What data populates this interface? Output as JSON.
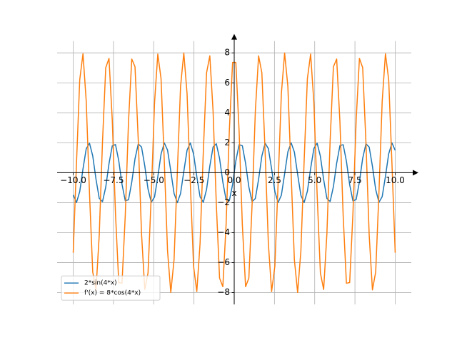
{
  "chart_data": {
    "type": "line",
    "xlabel": "x",
    "grid": true,
    "legend": "lower left",
    "xlim": [
      -11,
      11
    ],
    "ylim": [
      -8.79,
      8.79
    ],
    "xticks": [
      {
        "value": -10,
        "label": "−10.0"
      },
      {
        "value": -7.5,
        "label": "−7.5"
      },
      {
        "value": -5,
        "label": "−5.0"
      },
      {
        "value": -2.5,
        "label": "−2.5"
      },
      {
        "value": 0,
        "label": "0.0"
      },
      2.5,
      {
        "value": 5,
        "label": "5.0"
      },
      7.5,
      {
        "value": 10,
        "label": "10.0"
      }
    ],
    "yticks": [
      {
        "value": -8,
        "label": "−8"
      },
      {
        "value": -6,
        "label": "−6"
      },
      {
        "value": -4,
        "label": "−4"
      },
      {
        "value": -2,
        "label": "−2"
      },
      0,
      2,
      4,
      6,
      8
    ],
    "x": [
      -10,
      -9.798,
      -9.596,
      -9.394,
      -9.192,
      -8.99,
      -8.788,
      -8.586,
      -8.384,
      -8.182,
      -7.98,
      -7.778,
      -7.576,
      -7.374,
      -7.172,
      -6.97,
      -6.768,
      -6.566,
      -6.364,
      -6.162,
      -5.96,
      -5.758,
      -5.556,
      -5.354,
      -5.152,
      -4.949,
      -4.747,
      -4.545,
      -4.343,
      -4.141,
      -3.939,
      -3.737,
      -3.535,
      -3.333,
      -3.131,
      -2.929,
      -2.727,
      -2.525,
      -2.323,
      -2.121,
      -1.919,
      -1.717,
      -1.515,
      -1.313,
      -1.111,
      -0.909,
      -0.707,
      -0.505,
      -0.303,
      -0.101,
      0.101,
      0.303,
      0.505,
      0.707,
      0.909,
      1.111,
      1.313,
      1.515,
      1.717,
      1.919,
      2.121,
      2.323,
      2.525,
      2.727,
      2.929,
      3.131,
      3.333,
      3.535,
      3.737,
      3.939,
      4.141,
      4.343,
      4.545,
      4.747,
      4.949,
      5.152,
      5.354,
      5.556,
      5.758,
      5.96,
      6.162,
      6.364,
      6.566,
      6.768,
      6.97,
      7.172,
      7.374,
      7.576,
      7.778,
      7.98,
      8.182,
      8.384,
      8.586,
      8.788,
      8.99,
      9.192,
      9.394,
      9.596,
      9.798,
      10
    ],
    "series": [
      {
        "name": "2*sin(4*x)",
        "color": "#1f77b4",
        "values": [
          -1.49,
          -1.99,
          -1.26,
          0.25,
          1.6,
          1.97,
          1.12,
          -0.43,
          -1.71,
          -1.93,
          -0.96,
          0.6,
          1.79,
          1.88,
          0.8,
          -0.77,
          -1.87,
          -1.81,
          -0.63,
          0.93,
          1.92,
          1.72,
          0.46,
          -1.09,
          -1.97,
          -1.62,
          -0.28,
          1.24,
          1.99,
          1.51,
          0.1,
          -1.38,
          -2.0,
          -1.39,
          0.08,
          1.5,
          1.99,
          1.25,
          -0.26,
          -1.61,
          -1.97,
          -1.11,
          0.44,
          1.72,
          1.93,
          0.95,
          -0.62,
          -1.8,
          -1.87,
          -0.79,
          0.79,
          1.87,
          1.8,
          0.62,
          -0.95,
          -1.93,
          -1.72,
          -0.44,
          1.11,
          1.97,
          1.61,
          0.26,
          -1.25,
          -1.99,
          -1.5,
          -0.08,
          1.39,
          2.0,
          1.38,
          -0.1,
          -1.51,
          -1.99,
          -1.24,
          0.28,
          1.62,
          1.97,
          1.09,
          -0.46,
          -1.72,
          -1.92,
          -0.93,
          0.63,
          1.81,
          1.87,
          0.77,
          -0.8,
          -1.88,
          -1.79,
          -0.6,
          0.96,
          1.93,
          1.71,
          0.43,
          -1.12,
          -1.97,
          -1.6,
          -0.25,
          1.26,
          1.99,
          1.49
        ]
      },
      {
        "name": "f'(x) = 8*cos(4*x)",
        "color": "#ff7f0e",
        "values": [
          -5.34,
          0.62,
          6.2,
          7.94,
          4.77,
          -1.34,
          -6.63,
          -7.82,
          -4.17,
          2.05,
          7.01,
          7.63,
          3.54,
          -2.74,
          -7.33,
          -7.38,
          -2.87,
          3.41,
          7.59,
          7.07,
          2.18,
          -4.06,
          -7.79,
          -6.7,
          -1.48,
          4.66,
          7.92,
          6.28,
          0.76,
          -5.23,
          -7.99,
          -5.81,
          -0.03,
          5.76,
          7.99,
          5.28,
          -0.69,
          -6.24,
          -7.93,
          -4.72,
          1.41,
          6.67,
          7.8,
          4.12,
          -2.12,
          -7.04,
          -7.61,
          -3.48,
          2.81,
          7.36,
          7.36,
          2.81,
          -3.48,
          -7.61,
          -7.04,
          -2.12,
          4.12,
          7.8,
          6.67,
          1.41,
          -4.72,
          -7.93,
          -6.24,
          -0.69,
          5.28,
          7.99,
          5.76,
          -0.03,
          -5.81,
          -7.99,
          -5.23,
          0.76,
          6.28,
          7.92,
          4.66,
          -1.48,
          -6.7,
          -7.79,
          -4.06,
          2.18,
          7.07,
          7.59,
          3.41,
          -2.87,
          -7.38,
          -7.33,
          -2.74,
          3.54,
          7.63,
          7.01,
          2.05,
          -4.17,
          -7.82,
          -6.63,
          -1.34,
          4.77,
          7.94,
          6.2,
          0.62,
          -5.34
        ]
      }
    ]
  }
}
